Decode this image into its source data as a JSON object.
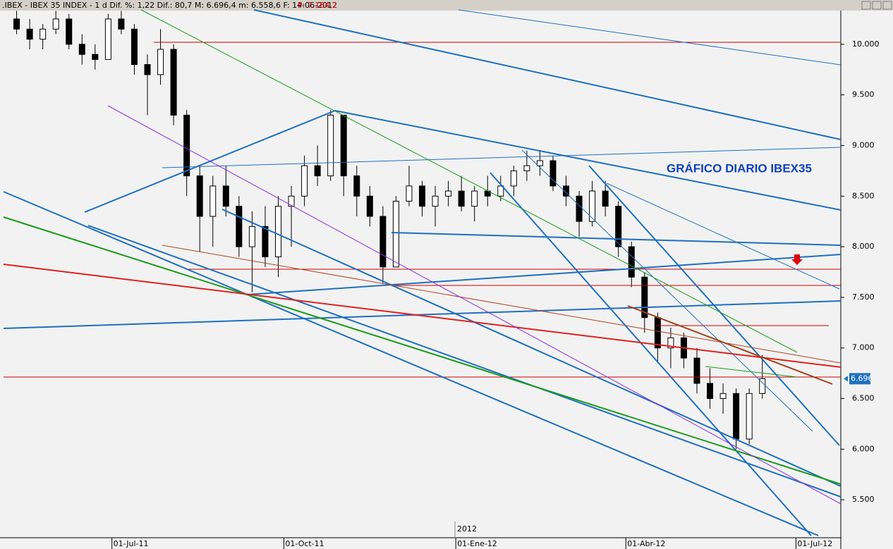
{
  "chart_data": {
    "type": "candlestick",
    "header": ".IBEX - IBEX 35 INDEX - 1 d Dif. %: 1,22 Dif.: 80,7 M: 6.696,4 m: 6.558,6 F: 14-06-2012",
    "header_price": "P: 7.184,2",
    "annotation": "GRÁFICO DIARIO IBEX35",
    "year_marker": "2012",
    "last_price": {
      "value": 6696,
      "label": "6.696"
    },
    "xlim": [
      "2011-05-04",
      "2012-07-25"
    ],
    "xticks": [
      {
        "value": "2011-07-01",
        "label": "01-Jul-11"
      },
      {
        "value": "2011-10-01",
        "label": "01-Oct-11"
      },
      {
        "value": "2012-01-01",
        "label": "01-Ene-12"
      },
      {
        "value": "2012-04-01",
        "label": "01-Abr-12"
      },
      {
        "value": "2012-07-01",
        "label": "01-Jul-12"
      }
    ],
    "ylim": [
      5125,
      10340
    ],
    "yticks": [
      {
        "value": 5500,
        "label": "5.500"
      },
      {
        "value": 6000,
        "label": "6.000"
      },
      {
        "value": 6500,
        "label": "6.500"
      },
      {
        "value": 7000,
        "label": "7.000"
      },
      {
        "value": 7500,
        "label": "7.500"
      },
      {
        "value": 8000,
        "label": "8.000"
      },
      {
        "value": 8500,
        "label": "8.500"
      },
      {
        "value": 9000,
        "label": "9.000"
      },
      {
        "value": 9500,
        "label": "9.500"
      },
      {
        "value": 10000,
        "label": "10.000"
      }
    ],
    "up_color": "#ffffff",
    "down_color": "#000000",
    "x": [
      "2011-05-09",
      "2011-05-16",
      "2011-05-23",
      "2011-05-30",
      "2011-06-06",
      "2011-06-13",
      "2011-06-20",
      "2011-06-27",
      "2011-07-04",
      "2011-07-11",
      "2011-07-18",
      "2011-07-25",
      "2011-08-01",
      "2011-08-08",
      "2011-08-15",
      "2011-08-22",
      "2011-08-29",
      "2011-09-05",
      "2011-09-12",
      "2011-09-19",
      "2011-09-26",
      "2011-10-03",
      "2011-10-10",
      "2011-10-17",
      "2011-10-24",
      "2011-10-31",
      "2011-11-07",
      "2011-11-14",
      "2011-11-21",
      "2011-11-28",
      "2011-12-05",
      "2011-12-12",
      "2011-12-19",
      "2011-12-26",
      "2012-01-02",
      "2012-01-09",
      "2012-01-16",
      "2012-01-23",
      "2012-01-30",
      "2012-02-06",
      "2012-02-13",
      "2012-02-20",
      "2012-02-27",
      "2012-03-05",
      "2012-03-12",
      "2012-03-19",
      "2012-03-26",
      "2012-04-02",
      "2012-04-09",
      "2012-04-16",
      "2012-04-23",
      "2012-04-30",
      "2012-05-07",
      "2012-05-14",
      "2012-05-21",
      "2012-05-28",
      "2012-06-04",
      "2012-06-11"
    ],
    "open": [
      10250,
      10150,
      10050,
      10150,
      10250,
      10000,
      9900,
      9850,
      10250,
      10150,
      9800,
      9700,
      9950,
      9300,
      8700,
      8300,
      8600,
      8400,
      8000,
      8200,
      7900,
      8400,
      8500,
      8800,
      8700,
      9300,
      8700,
      8500,
      8300,
      7800,
      8450,
      8600,
      8400,
      8500,
      8550,
      8400,
      8550,
      8500,
      8600,
      8750,
      8800,
      8850,
      8600,
      8500,
      8250,
      8550,
      8400,
      8000,
      7700,
      7300,
      7000,
      7100,
      6900,
      6650,
      6500,
      6550,
      6100,
      6550
    ],
    "high": [
      10330,
      10250,
      10200,
      10330,
      10300,
      10100,
      10000,
      10300,
      10330,
      10200,
      9900,
      10150,
      10000,
      9350,
      8800,
      8700,
      8800,
      8500,
      8350,
      8400,
      8500,
      8600,
      8900,
      9000,
      9350,
      9300,
      8800,
      8600,
      8400,
      8500,
      8800,
      8650,
      8600,
      8650,
      8700,
      8600,
      8700,
      8700,
      8800,
      8950,
      8950,
      8900,
      8700,
      8550,
      8650,
      8650,
      8450,
      8050,
      7750,
      7350,
      7200,
      7150,
      7000,
      6800,
      6650,
      6600,
      6600,
      6930
    ],
    "low": [
      10100,
      9950,
      9950,
      10100,
      9950,
      9800,
      9750,
      9850,
      10100,
      9700,
      9300,
      9600,
      9200,
      8500,
      7950,
      8000,
      8300,
      7900,
      7550,
      7800,
      7700,
      8000,
      8400,
      8600,
      8650,
      8500,
      8300,
      8200,
      7640,
      7800,
      8400,
      8300,
      8200,
      8400,
      8350,
      8250,
      8400,
      8450,
      8500,
      8650,
      8700,
      8550,
      8400,
      8100,
      8200,
      8300,
      7900,
      7600,
      7150,
      6850,
      6800,
      6800,
      6550,
      6400,
      6350,
      6000,
      6050,
      6500
    ],
    "close": [
      10150,
      10050,
      10150,
      10250,
      10000,
      9900,
      9850,
      10250,
      10150,
      9800,
      9700,
      9950,
      9300,
      8700,
      8300,
      8600,
      8400,
      8000,
      8200,
      7900,
      8400,
      8500,
      8800,
      8700,
      9300,
      8700,
      8500,
      8300,
      7800,
      8450,
      8600,
      8400,
      8500,
      8550,
      8400,
      8550,
      8500,
      8600,
      8750,
      8800,
      8850,
      8600,
      8500,
      8250,
      8550,
      8400,
      8000,
      7700,
      7300,
      7000,
      7100,
      6900,
      6650,
      6500,
      6550,
      6100,
      6550,
      6696
    ]
  }
}
